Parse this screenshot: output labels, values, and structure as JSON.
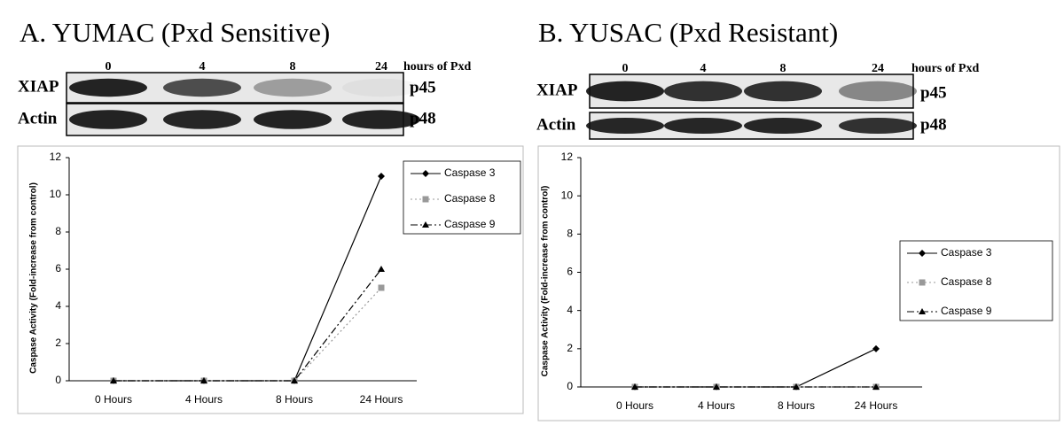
{
  "chart_data": [
    {
      "type": "line",
      "title": "A.  YUMAC (Pxd Sensitive)",
      "y_label": "Caspase Activity (Fold-increase from control)",
      "categories": [
        "0 Hours",
        "4 Hours",
        "8 Hours",
        "24 Hours"
      ],
      "ylim": [
        0,
        12
      ],
      "yticks": [
        0,
        2,
        4,
        6,
        8,
        10,
        12
      ],
      "series": [
        {
          "name": "Caspase 3",
          "color": "#000000",
          "marker": "diamond",
          "line_style": "solid",
          "values": [
            0,
            0,
            0,
            11
          ]
        },
        {
          "name": "Caspase 8",
          "color": "#999999",
          "marker": "square",
          "line_style": "dotted",
          "values": [
            0,
            0,
            0,
            5
          ]
        },
        {
          "name": "Caspase 9",
          "color": "#000000",
          "marker": "triangle",
          "line_style": "dashdot",
          "values": [
            0,
            0,
            0,
            6
          ]
        }
      ]
    },
    {
      "type": "line",
      "title": "B.  YUSAC (Pxd Resistant)",
      "y_label": "Caspase Activity (Fold-increase from control)",
      "categories": [
        "0 Hours",
        "4 Hours",
        "8 Hours",
        "24 Hours"
      ],
      "ylim": [
        0,
        12
      ],
      "yticks": [
        0,
        2,
        4,
        6,
        8,
        10,
        12
      ],
      "series": [
        {
          "name": "Caspase 3",
          "color": "#000000",
          "marker": "diamond",
          "line_style": "solid",
          "values": [
            0,
            0,
            0,
            2
          ]
        },
        {
          "name": "Caspase 8",
          "color": "#999999",
          "marker": "square",
          "line_style": "dotted",
          "values": [
            0,
            0,
            0,
            0
          ]
        },
        {
          "name": "Caspase 9",
          "color": "#000000",
          "marker": "triangle",
          "line_style": "dashdot",
          "values": [
            0,
            0,
            0,
            0
          ]
        }
      ]
    }
  ],
  "blots": [
    {
      "lanes": [
        "0",
        "4",
        "8",
        "24"
      ],
      "lane_unit": "hours of Pxd",
      "rows": [
        {
          "name": "XIAP",
          "band": "p45"
        },
        {
          "name": "Actin",
          "band": "p48"
        }
      ]
    },
    {
      "lanes": [
        "0",
        "4",
        "8",
        "24"
      ],
      "lane_unit": "hours of Pxd",
      "rows": [
        {
          "name": "XIAP",
          "band": "p45"
        },
        {
          "name": "Actin",
          "band": "p48"
        }
      ]
    }
  ]
}
